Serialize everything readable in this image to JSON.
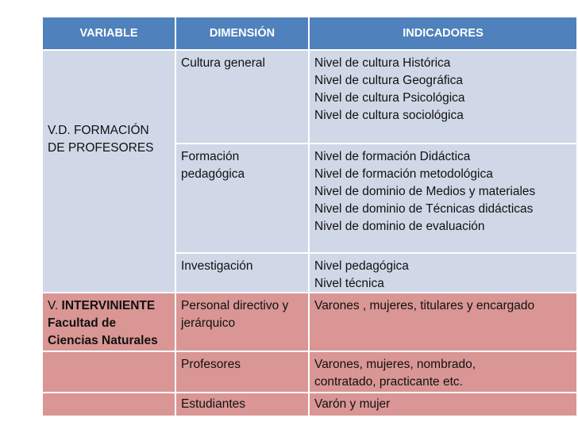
{
  "header": {
    "variable": "VARIABLE",
    "dimension": "DIMENSIÓN",
    "indicators": "INDICADORES"
  },
  "colors": {
    "header": "#4f81bd",
    "dependent_rows": "#d0d8e8",
    "intervening_rows": "#d99694"
  },
  "dependent": {
    "variable_line1": "V.D. FORMACIÓN",
    "variable_line2": "DE PROFESORES",
    "rows": [
      {
        "dimension": [
          "Cultura general"
        ],
        "indicators": [
          "Nivel de cultura Histórica",
          "Nivel de cultura Geográfica",
          "Nivel de cultura Psicológica",
          "Nivel de cultura  sociológica"
        ]
      },
      {
        "dimension": [
          "Formación",
          "pedagógica"
        ],
        "indicators": [
          "Nivel de formación Didáctica",
          "Nivel de formación metodológica",
          "Nivel de dominio de Medios y materiales",
          "Nivel de dominio de Técnicas didácticas",
          "Nivel de dominio de evaluación"
        ]
      },
      {
        "dimension": [
          "Investigación"
        ],
        "indicators": [
          "Nivel pedagógica",
          "Nivel técnica"
        ]
      }
    ]
  },
  "intervening": {
    "variable_prefix": "V. ",
    "variable_bold1": "INTERVINIENTE",
    "variable_bold2": "Facultad de",
    "variable_bold3": "Ciencias Naturales",
    "rows": [
      {
        "dimension": [
          "Personal directivo y",
          "jerárquico"
        ],
        "indicators": [
          "Varones , mujeres, titulares y encargado"
        ]
      },
      {
        "dimension": [
          "Profesores"
        ],
        "indicators": [
          "Varones,  mujeres, nombrado,",
          "contratado, practicante etc."
        ]
      },
      {
        "dimension": [
          "Estudiantes"
        ],
        "indicators": [
          "Varón y mujer"
        ]
      }
    ]
  }
}
